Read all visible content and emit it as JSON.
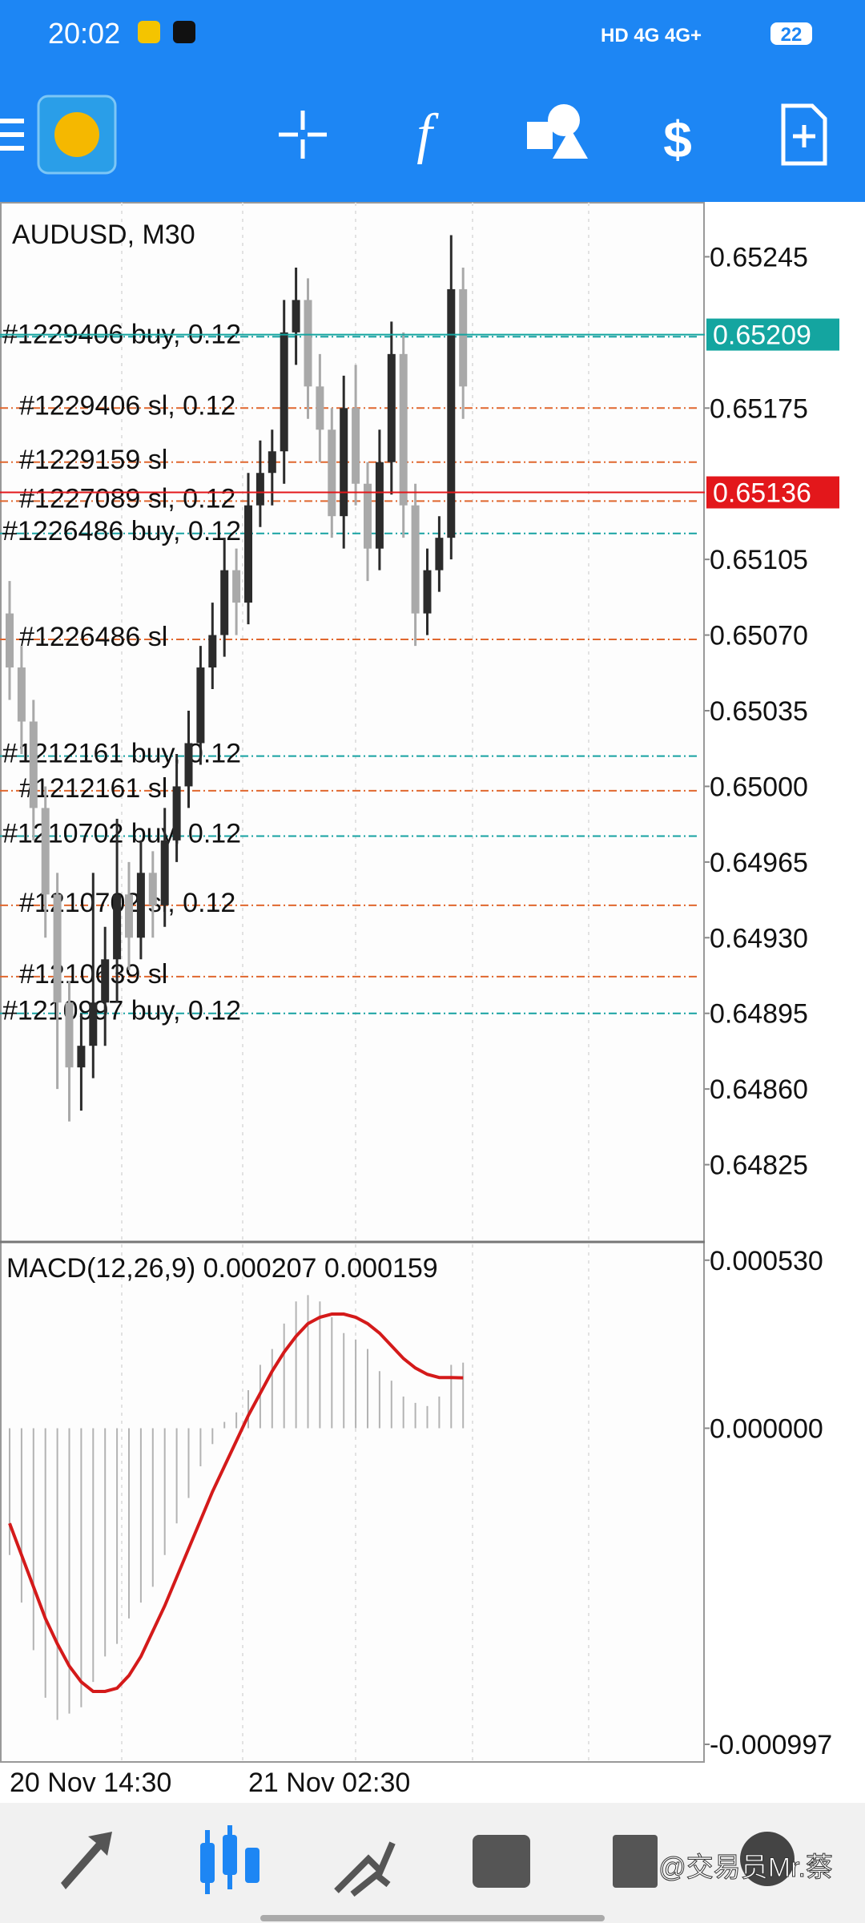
{
  "status_bar": {
    "time": "20:02",
    "battery": "22"
  },
  "bottom_nav": {
    "watermark": "@交易员Mr.蔡"
  },
  "chart_data": [
    {
      "type": "candlestick",
      "title": "AUDUSD, M30",
      "categories": [
        "20 Nov 14:30",
        null,
        null,
        null,
        null,
        null,
        null,
        null,
        null,
        null,
        null,
        null,
        null,
        null,
        null,
        null,
        null,
        null,
        null,
        null,
        "21 Nov 02:30",
        null,
        null,
        null,
        null,
        null,
        null,
        null,
        null,
        null,
        null,
        null,
        null,
        null,
        null,
        null,
        null,
        null,
        null
      ],
      "open": [
        0.6508,
        0.65055,
        0.6503,
        0.6499,
        0.6495,
        0.649,
        0.6487,
        0.6488,
        0.649,
        0.6492,
        0.6495,
        0.6493,
        0.6496,
        0.64945,
        0.64975,
        0.65,
        0.6502,
        0.65055,
        0.6507,
        0.651,
        0.65085,
        0.6513,
        0.65145,
        0.65155,
        0.6521,
        0.65225,
        0.65185,
        0.65165,
        0.65125,
        0.65175,
        0.6514,
        0.6511,
        0.6515,
        0.652,
        0.6513,
        0.6508,
        0.651,
        0.65115,
        0.6523
      ],
      "high": [
        0.65095,
        0.65065,
        0.6504,
        0.65,
        0.6496,
        0.6491,
        0.64895,
        0.6496,
        0.64935,
        0.64985,
        0.64965,
        0.64975,
        0.6497,
        0.6499,
        0.65015,
        0.65035,
        0.65065,
        0.65085,
        0.65115,
        0.6511,
        0.65145,
        0.6516,
        0.65165,
        0.65225,
        0.6524,
        0.65235,
        0.652,
        0.65175,
        0.6519,
        0.65195,
        0.6515,
        0.65165,
        0.65215,
        0.6521,
        0.6514,
        0.6511,
        0.65125,
        0.65255,
        0.6524
      ],
      "low": [
        0.6504,
        0.65015,
        0.64975,
        0.6493,
        0.6486,
        0.64845,
        0.6485,
        0.64865,
        0.6488,
        0.649,
        0.64915,
        0.6492,
        0.6493,
        0.64935,
        0.64965,
        0.6499,
        0.6501,
        0.65045,
        0.6506,
        0.6507,
        0.65075,
        0.6512,
        0.6513,
        0.6514,
        0.65195,
        0.6517,
        0.6515,
        0.65115,
        0.6511,
        0.6513,
        0.65095,
        0.651,
        0.65135,
        0.65115,
        0.65065,
        0.6507,
        0.6509,
        0.65105,
        0.6517
      ],
      "close": [
        0.65055,
        0.6503,
        0.6499,
        0.6495,
        0.649,
        0.6487,
        0.6488,
        0.649,
        0.6492,
        0.6495,
        0.6493,
        0.6496,
        0.64945,
        0.64975,
        0.65,
        0.6502,
        0.65055,
        0.6507,
        0.651,
        0.65085,
        0.6513,
        0.65145,
        0.65155,
        0.6521,
        0.65225,
        0.65185,
        0.65165,
        0.65125,
        0.65175,
        0.6514,
        0.6511,
        0.6515,
        0.652,
        0.6513,
        0.6508,
        0.651,
        0.65115,
        0.6523,
        0.65185
      ],
      "up_color": "#2b2b2b",
      "down_color": "#a9a9a9",
      "ylim": [
        0.6479,
        0.6527
      ],
      "yticks": [
        0.65245,
        0.65175,
        0.65105,
        {
          "value": 0.6507,
          "label": "0.65070"
        },
        0.65035,
        {
          "value": 0.65,
          "label": "0.65000"
        },
        0.64965,
        {
          "value": 0.6493,
          "label": "0.64930"
        },
        0.64895,
        {
          "value": 0.6486,
          "label": "0.64860"
        },
        0.64825
      ],
      "orders": [
        {
          "label": "#1229406 buy, 0.12",
          "price": 0.65208,
          "kind": "buy"
        },
        {
          "label": "#1229406 sl, 0.12",
          "price": 0.65175,
          "kind": "sl"
        },
        {
          "label": "#1229159 sl",
          "price": 0.6515,
          "kind": "sl"
        },
        {
          "label": "#1227089 sl, 0.12",
          "price": 0.65132,
          "kind": "sl"
        },
        {
          "label": "#1226486 buy, 0.12",
          "price": 0.65117,
          "kind": "buy"
        },
        {
          "label": "#1226486 sl",
          "price": 0.65068,
          "kind": "sl"
        },
        {
          "label": "#1212161 buy, 0.12",
          "price": 0.65014,
          "kind": "buy"
        },
        {
          "label": "#1212161 sl",
          "price": 0.64998,
          "kind": "sl"
        },
        {
          "label": "#1210702 buy, 0.12",
          "price": 0.64977,
          "kind": "buy"
        },
        {
          "label": "#1210702 sl, 0.12",
          "price": 0.64945,
          "kind": "sl"
        },
        {
          "label": "#1210639 sl",
          "price": 0.64912,
          "kind": "sl"
        },
        {
          "label": "#1210997 buy, 0.12",
          "price": 0.64895,
          "kind": "buy"
        }
      ],
      "order_colors": {
        "buy": "#17a2a2",
        "sl": "#e0672e"
      },
      "price_tags": [
        {
          "value": 0.65209,
          "color": "#14a5a0"
        },
        {
          "value": 0.65136,
          "color": "#e3171b"
        }
      ]
    },
    {
      "type": "macd",
      "title": "MACD(12,26,9) 0.000207 0.000159",
      "histogram": [
        -0.0004,
        -0.00055,
        -0.0007,
        -0.00085,
        -0.00092,
        -0.0009,
        -0.00088,
        -0.0008,
        -0.00072,
        -0.00068,
        -0.0006,
        -0.00055,
        -0.0005,
        -0.0004,
        -0.0003,
        -0.00022,
        -0.00012,
        -5e-05,
        2e-05,
        5e-05,
        0.00012,
        0.0002,
        0.00025,
        0.00033,
        0.0004,
        0.00042,
        0.0004,
        0.00035,
        0.0003,
        0.00028,
        0.00025,
        0.00018,
        0.00015,
        0.0001,
        8e-05,
        7e-05,
        0.0001,
        0.0002,
        0.000207
      ],
      "histogram_color": "#b3b3b3",
      "signal": [
        -0.0003,
        -0.0004,
        -0.0005,
        -0.0006,
        -0.00068,
        -0.00075,
        -0.0008,
        -0.00083,
        -0.00083,
        -0.00082,
        -0.00078,
        -0.00072,
        -0.00064,
        -0.00056,
        -0.00047,
        -0.00038,
        -0.00029,
        -0.0002,
        -0.00012,
        -4e-05,
        4e-05,
        0.00011,
        0.00018,
        0.00024,
        0.00029,
        0.00033,
        0.00035,
        0.00036,
        0.00036,
        0.00035,
        0.00033,
        0.0003,
        0.00026,
        0.00022,
        0.00019,
        0.00017,
        0.00016,
        0.00016,
        0.000159
      ],
      "signal_color": "#d41a1a",
      "ylim": [
        -0.00105,
        0.00058
      ],
      "yticks": [
        {
          "value": 0.00053,
          "label": "0.000530"
        },
        {
          "value": 0,
          "label": "0.000000"
        },
        {
          "value": -0.000997,
          "label": "-0.000997"
        }
      ]
    }
  ]
}
